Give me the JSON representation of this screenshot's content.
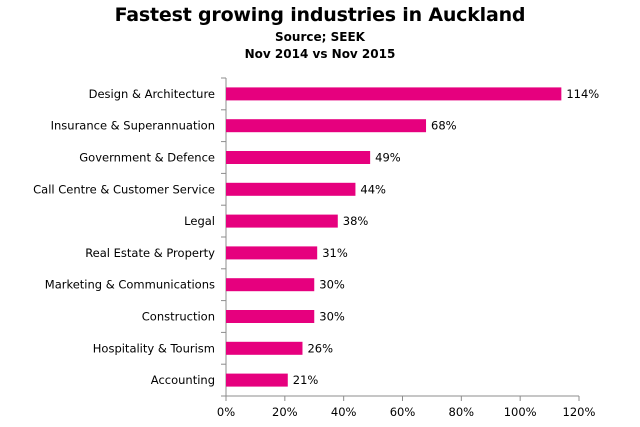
{
  "chart_data": {
    "type": "bar",
    "orientation": "horizontal",
    "title": "Fastest growing industries in Auckland",
    "subtitle_lines": [
      "Source; SEEK",
      "Nov 2014 vs Nov 2015"
    ],
    "categories": [
      "Design & Architecture",
      "Insurance & Superannuation",
      "Government & Defence",
      "Call Centre & Customer Service",
      "Legal",
      "Real Estate & Property",
      "Marketing & Communications",
      "Construction",
      "Hospitality & Tourism",
      "Accounting"
    ],
    "values": [
      114,
      68,
      49,
      44,
      38,
      31,
      30,
      30,
      26,
      21
    ],
    "value_labels": [
      "114%",
      "68%",
      "49%",
      "44%",
      "38%",
      "31%",
      "30%",
      "30%",
      "26%",
      "21%"
    ],
    "xlim": [
      0,
      120
    ],
    "xticks": [
      "0%",
      "20%",
      "40%",
      "60%",
      "80%",
      "100%",
      "120%"
    ],
    "bar_color": "#e6007e",
    "grid": false,
    "legend": "none"
  }
}
